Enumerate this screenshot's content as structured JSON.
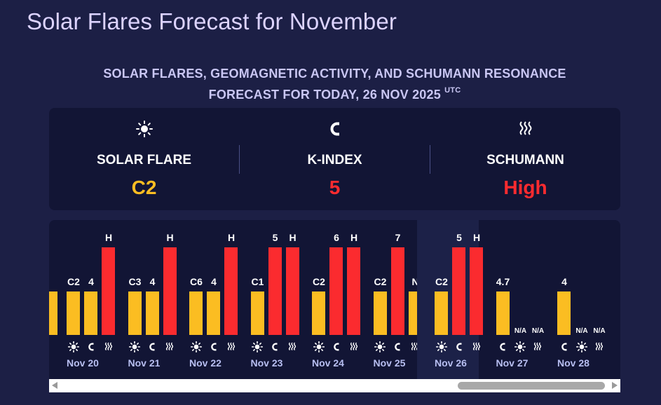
{
  "page_title": "Solar Flares Forecast for November",
  "subtitle": {
    "line1": "SOLAR FLARES, GEOMAGNETIC ACTIVITY, AND SCHUMANN RESONANCE",
    "line2": "FORECAST FOR TODAY, 26 NOV 2025",
    "tz": "UTC"
  },
  "summary": [
    {
      "icon": "sun-icon",
      "label": "SOLAR FLARE",
      "value": "C2",
      "color": "#fbbd22"
    },
    {
      "icon": "magnet-icon",
      "label": "K-INDEX",
      "value": "5",
      "color": "#fb2b2f"
    },
    {
      "icon": "wave-icon",
      "label": "SCHUMANN",
      "value": "High",
      "color": "#fb2b2f"
    }
  ],
  "timeline": [
    {
      "date": "Nov 20",
      "flare": "C2",
      "kindex": "4",
      "schumann": "H",
      "today": false
    },
    {
      "date": "Nov 21",
      "flare": "C3",
      "kindex": "4",
      "schumann": "H",
      "today": false
    },
    {
      "date": "Nov 22",
      "flare": "C6",
      "kindex": "4",
      "schumann": "H",
      "today": false
    },
    {
      "date": "Nov 23",
      "flare": "C1",
      "kindex": "5",
      "schumann": "H",
      "today": false
    },
    {
      "date": "Nov 24",
      "flare": "C2",
      "kindex": "6",
      "schumann": "H",
      "today": false
    },
    {
      "date": "Nov 25",
      "flare": "C2",
      "kindex": "7",
      "schumann": "N",
      "today": false
    },
    {
      "date": "Nov 26",
      "flare": "C2",
      "kindex": "5",
      "schumann": "H",
      "today": true
    },
    {
      "date": "Nov 27",
      "kindex": "4.7",
      "flare": "N/A",
      "schumann": "N/A",
      "today": false
    },
    {
      "date": "Nov 28",
      "kindex": "4",
      "flare": "N/A",
      "schumann": "N/A",
      "today": false
    }
  ],
  "colors": {
    "yellow": "#fbbd22",
    "red": "#fb2b2f"
  }
}
